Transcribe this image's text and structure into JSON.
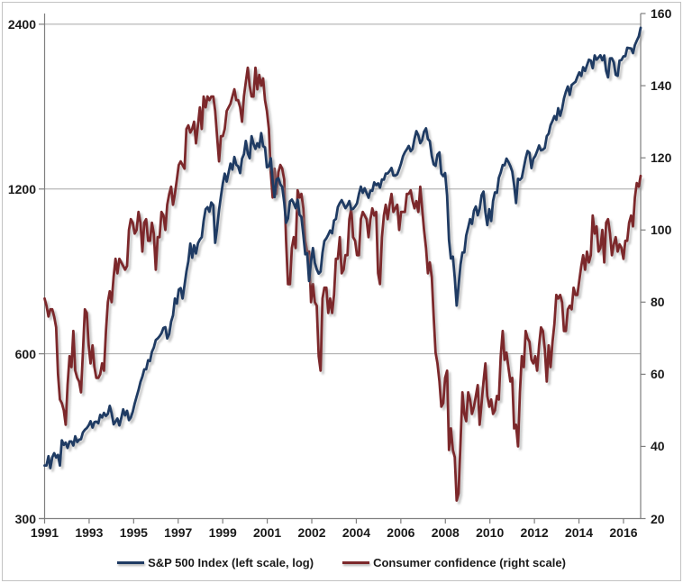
{
  "chart_data": {
    "type": "line",
    "title": "",
    "x_tick_labels": [
      "1991",
      "1993",
      "1995",
      "1997",
      "1999",
      "2001",
      "2002",
      "2004",
      "2006",
      "2008",
      "2010",
      "2012",
      "2014",
      "2016"
    ],
    "left_axis": {
      "scale": "log",
      "ticks": [
        2400,
        1200,
        600,
        300
      ],
      "range": [
        300,
        2400
      ]
    },
    "right_axis": {
      "scale": "linear",
      "ticks": [
        160,
        140,
        120,
        100,
        80,
        60,
        40,
        20
      ],
      "range": [
        20,
        160
      ]
    },
    "grid_color": "#a6a6a6",
    "axis_color": "#7f7f7f",
    "series": [
      {
        "name": "Consumer confidence (right scale)",
        "axis": "right",
        "color": "#7c282b",
        "values": [
          81,
          79,
          76,
          78,
          78,
          76,
          73,
          60,
          53,
          52,
          50,
          46,
          57,
          65,
          62,
          72,
          61,
          59,
          58,
          55,
          66,
          78,
          77,
          68,
          63,
          68,
          62,
          59,
          59,
          60,
          63,
          61,
          72,
          80,
          83,
          80,
          87,
          92,
          88,
          92,
          91,
          90,
          89,
          90,
          100,
          103,
          102,
          99,
          100,
          105,
          102,
          94,
          102,
          103,
          97,
          97,
          102,
          99,
          89,
          98,
          98,
          105,
          104,
          100,
          107,
          110,
          112,
          107,
          110,
          114,
          118,
          119,
          118,
          117,
          128,
          129,
          127,
          128,
          130,
          124,
          129,
          134,
          128,
          137,
          134,
          137,
          136,
          137,
          137,
          133,
          126,
          119,
          126,
          126,
          128,
          133,
          134,
          135,
          137,
          139,
          136,
          136,
          134,
          130,
          137,
          141,
          145,
          140,
          137,
          137,
          145,
          139,
          143,
          140,
          142,
          136,
          133,
          128,
          116,
          109,
          117,
          110,
          116,
          118,
          117,
          114,
          97,
          85,
          85,
          95,
          98,
          95,
          111,
          109,
          110,
          106,
          97,
          94,
          94,
          80,
          85,
          80,
          79,
          65,
          61,
          81,
          84,
          84,
          77,
          81,
          77,
          82,
          92,
          92,
          98,
          88,
          89,
          93,
          93,
          103,
          106,
          98,
          97,
          93,
          93,
          103,
          105,
          104,
          103,
          98,
          103,
          106,
          104,
          105,
          88,
          85,
          98,
          104,
          107,
          103,
          107,
          110,
          105,
          106,
          107,
          100,
          105,
          105,
          105,
          110,
          110,
          111,
          108,
          106,
          108,
          105,
          112,
          106,
          100,
          95,
          88,
          91,
          87,
          76,
          66,
          63,
          58,
          51,
          52,
          59,
          61,
          39,
          45,
          39,
          37,
          25,
          27,
          41,
          55,
          49,
          47,
          55,
          53,
          49,
          51,
          54,
          57,
          46,
          52,
          58,
          63,
          54,
          51,
          53,
          49,
          50,
          54,
          53,
          65,
          72,
          64,
          66,
          62,
          58,
          59,
          45,
          46,
          40,
          55,
          65,
          62,
          72,
          70,
          69,
          64,
          63,
          65,
          61,
          68,
          73,
          72,
          67,
          58,
          68,
          62,
          69,
          74,
          82,
          81,
          82,
          80,
          72,
          72,
          78,
          79,
          78,
          84,
          82,
          82,
          86,
          90,
          93,
          89,
          94,
          91,
          93,
          104,
          99,
          101,
          94,
          95,
          100,
          91,
          102,
          103,
          99,
          93,
          96,
          98,
          94,
          96,
          95,
          92,
          97,
          97,
          102,
          104,
          101,
          109,
          113,
          112,
          115
        ]
      },
      {
        "name": "S&P 500 Index (left scale, log)",
        "axis": "left",
        "color": "#1f3b63",
        "values": [
          375,
          375,
          390,
          371,
          388,
          395,
          388,
          392,
          375,
          417,
          409,
          413,
          404,
          415,
          415,
          408,
          424,
          414,
          418,
          419,
          431,
          436,
          439,
          444,
          452,
          440,
          450,
          451,
          448,
          464,
          459,
          468,
          462,
          466,
          482,
          467,
          446,
          451,
          457,
          444,
          458,
          475,
          463,
          472,
          454,
          459,
          470,
          487,
          501,
          515,
          533,
          545,
          562,
          562,
          584,
          582,
          605,
          616,
          636,
          640,
          646,
          654,
          669,
          671,
          640,
          652,
          687,
          705,
          757,
          741,
          786,
          791,
          757,
          801,
          848,
          885,
          954,
          899,
          947,
          915,
          955,
          970,
          980,
          1049,
          1102,
          1112,
          1091,
          1134,
          1121,
          957,
          1017,
          1099,
          1164,
          1229,
          1280,
          1238,
          1286,
          1335,
          1302,
          1373,
          1329,
          1320,
          1283,
          1363,
          1389,
          1469,
          1394,
          1366,
          1499,
          1452,
          1421,
          1455,
          1431,
          1518,
          1437,
          1429,
          1315,
          1320,
          1366,
          1240,
          1160,
          1249,
          1256,
          1224,
          1211,
          1134,
          1041,
          1060,
          1139,
          1148,
          1130,
          1107,
          1147,
          1077,
          1067,
          990,
          912,
          916,
          815,
          886,
          936,
          880,
          856,
          841,
          848,
          917,
          964,
          975,
          990,
          1008,
          996,
          1051,
          1058,
          1112,
          1131,
          1145,
          1126,
          1107,
          1121,
          1141,
          1102,
          1104,
          1115,
          1130,
          1174,
          1212,
          1181,
          1204,
          1181,
          1157,
          1192,
          1191,
          1234,
          1220,
          1229,
          1207,
          1249,
          1248,
          1280,
          1281,
          1295,
          1311,
          1270,
          1270,
          1277,
          1304,
          1336,
          1378,
          1401,
          1418,
          1438,
          1407,
          1421,
          1482,
          1531,
          1503,
          1455,
          1474,
          1527,
          1549,
          1481,
          1468,
          1379,
          1331,
          1323,
          1386,
          1400,
          1280,
          1267,
          1283,
          1166,
          969,
          896,
          903,
          826,
          735,
          798,
          873,
          919,
          919,
          987,
          1021,
          1057,
          1036,
          1096,
          1115,
          1074,
          1104,
          1169,
          1187,
          1089,
          1031,
          1102,
          1049,
          1141,
          1183,
          1181,
          1258,
          1286,
          1327,
          1326,
          1364,
          1345,
          1321,
          1292,
          1219,
          1131,
          1253,
          1247,
          1258,
          1312,
          1366,
          1408,
          1398,
          1310,
          1362,
          1379,
          1407,
          1441,
          1412,
          1416,
          1426,
          1498,
          1515,
          1569,
          1598,
          1631,
          1606,
          1686,
          1633,
          1682,
          1757,
          1806,
          1848,
          1783,
          1859,
          1872,
          1884,
          1924,
          1960,
          1931,
          2003,
          1972,
          2018,
          2068,
          2059,
          1995,
          2105,
          2068,
          2086,
          2107,
          2063,
          2104,
          1972,
          1920,
          2079,
          2080,
          2044,
          1940,
          1932,
          2060,
          2065,
          2097,
          2099,
          2174,
          2171,
          2168,
          2126,
          2199,
          2239,
          2279,
          2364
        ]
      }
    ]
  }
}
